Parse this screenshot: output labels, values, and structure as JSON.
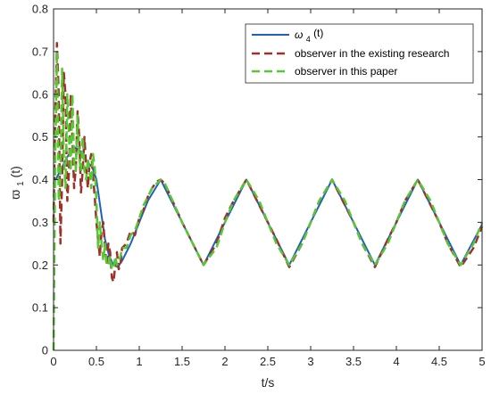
{
  "chart_data": {
    "type": "line",
    "title": "",
    "xlabel": "t/s",
    "ylabel_main": "ϖ",
    "ylabel_sub": "1",
    "ylabel_suffix": "(t)",
    "xlim": [
      0,
      5
    ],
    "ylim": [
      0,
      0.8
    ],
    "xticks": [
      0,
      0.5,
      1,
      1.5,
      2,
      2.5,
      3,
      3.5,
      4,
      4.5,
      5
    ],
    "yticks": [
      0,
      0.1,
      0.2,
      0.3,
      0.4,
      0.5,
      0.6,
      0.7,
      0.8
    ],
    "xtick_labels": [
      "0",
      "0.5",
      "1",
      "1.5",
      "2",
      "2.5",
      "3",
      "3.5",
      "4",
      "4.5",
      "5"
    ],
    "ytick_labels": [
      "0",
      "0.1",
      "0.2",
      "0.3",
      "0.4",
      "0.5",
      "0.6",
      "0.7",
      "0.8"
    ],
    "grid": false,
    "legend_position": "top-right",
    "series": [
      {
        "name_main": "ω",
        "name_sub": "4",
        "name_suffix": "(t)",
        "color": "#1f5fbf",
        "dash": "solid",
        "x": [
          0,
          0.05,
          0.1,
          0.15,
          0.2,
          0.25,
          0.3,
          0.35,
          0.4,
          0.45,
          0.5,
          0.55,
          0.6,
          0.65,
          0.7,
          0.75,
          0.8,
          0.9,
          1.0,
          1.1,
          1.25,
          1.5,
          1.75,
          2.0,
          2.25,
          2.5,
          2.75,
          3.0,
          3.25,
          3.5,
          3.75,
          4.0,
          4.25,
          4.5,
          4.75,
          5.0
        ],
        "y": [
          0.39,
          0.41,
          0.43,
          0.45,
          0.465,
          0.475,
          0.47,
          0.455,
          0.44,
          0.43,
          0.4,
          0.33,
          0.26,
          0.22,
          0.2,
          0.195,
          0.21,
          0.25,
          0.3,
          0.35,
          0.4,
          0.3,
          0.2,
          0.3,
          0.4,
          0.3,
          0.2,
          0.3,
          0.4,
          0.3,
          0.2,
          0.3,
          0.4,
          0.3,
          0.2,
          0.295
        ]
      },
      {
        "name": "observer in the existing research",
        "color": "#a0302a",
        "dash": "dashed",
        "x": [
          0,
          0.02,
          0.04,
          0.06,
          0.08,
          0.1,
          0.12,
          0.14,
          0.16,
          0.18,
          0.2,
          0.22,
          0.24,
          0.26,
          0.28,
          0.3,
          0.32,
          0.34,
          0.36,
          0.38,
          0.4,
          0.42,
          0.44,
          0.46,
          0.48,
          0.5,
          0.52,
          0.54,
          0.56,
          0.58,
          0.6,
          0.62,
          0.64,
          0.66,
          0.68,
          0.7,
          0.72,
          0.74,
          0.76,
          0.78,
          0.8,
          0.85,
          0.9,
          0.95,
          1.0,
          1.05,
          1.1,
          1.15,
          1.2,
          1.25,
          1.3,
          1.5,
          1.75,
          1.9,
          2.0,
          2.1,
          2.25,
          2.4,
          2.5,
          2.6,
          2.75,
          2.9,
          3.0,
          3.1,
          3.25,
          3.4,
          3.5,
          3.6,
          3.75,
          3.9,
          4.0,
          4.1,
          4.25,
          4.4,
          4.5,
          4.6,
          4.75,
          4.9,
          5.0
        ],
        "y": [
          0.3,
          0.55,
          0.72,
          0.6,
          0.25,
          0.4,
          0.65,
          0.6,
          0.35,
          0.42,
          0.6,
          0.5,
          0.38,
          0.43,
          0.56,
          0.5,
          0.37,
          0.42,
          0.5,
          0.43,
          0.38,
          0.44,
          0.46,
          0.41,
          0.36,
          0.3,
          0.26,
          0.22,
          0.28,
          0.3,
          0.24,
          0.2,
          0.25,
          0.23,
          0.17,
          0.16,
          0.2,
          0.23,
          0.19,
          0.2,
          0.24,
          0.25,
          0.28,
          0.27,
          0.31,
          0.33,
          0.36,
          0.38,
          0.395,
          0.4,
          0.39,
          0.3,
          0.2,
          0.25,
          0.31,
          0.35,
          0.4,
          0.34,
          0.3,
          0.26,
          0.195,
          0.25,
          0.3,
          0.35,
          0.4,
          0.34,
          0.3,
          0.25,
          0.195,
          0.26,
          0.3,
          0.35,
          0.4,
          0.34,
          0.3,
          0.25,
          0.195,
          0.24,
          0.29
        ]
      },
      {
        "name": "observer in this paper",
        "color": "#55c833",
        "dash": "dashed",
        "x": [
          0,
          0.02,
          0.04,
          0.06,
          0.08,
          0.1,
          0.12,
          0.14,
          0.16,
          0.18,
          0.2,
          0.22,
          0.24,
          0.26,
          0.28,
          0.3,
          0.32,
          0.34,
          0.36,
          0.38,
          0.4,
          0.42,
          0.44,
          0.46,
          0.48,
          0.5,
          0.52,
          0.54,
          0.56,
          0.58,
          0.6,
          0.62,
          0.64,
          0.66,
          0.68,
          0.7,
          0.72,
          0.74,
          0.76,
          0.78,
          0.8,
          0.85,
          0.9,
          0.95,
          1.0,
          1.05,
          1.1,
          1.15,
          1.2,
          1.25,
          1.3,
          1.5,
          1.75,
          1.9,
          2.0,
          2.1,
          2.25,
          2.4,
          2.5,
          2.6,
          2.75,
          2.9,
          3.0,
          3.1,
          3.25,
          3.4,
          3.5,
          3.6,
          3.75,
          3.9,
          4.0,
          4.1,
          4.25,
          4.4,
          4.5,
          4.6,
          4.75,
          4.9,
          5.0
        ],
        "y": [
          0.0,
          0.45,
          0.7,
          0.35,
          0.4,
          0.66,
          0.45,
          0.38,
          0.6,
          0.5,
          0.42,
          0.6,
          0.44,
          0.42,
          0.55,
          0.45,
          0.42,
          0.5,
          0.42,
          0.4,
          0.45,
          0.42,
          0.38,
          0.46,
          0.43,
          0.35,
          0.24,
          0.3,
          0.25,
          0.21,
          0.25,
          0.2,
          0.2,
          0.22,
          0.19,
          0.19,
          0.22,
          0.2,
          0.21,
          0.22,
          0.24,
          0.24,
          0.27,
          0.28,
          0.31,
          0.34,
          0.36,
          0.38,
          0.39,
          0.4,
          0.39,
          0.3,
          0.2,
          0.24,
          0.3,
          0.35,
          0.4,
          0.35,
          0.3,
          0.25,
          0.2,
          0.25,
          0.3,
          0.35,
          0.4,
          0.35,
          0.3,
          0.25,
          0.2,
          0.25,
          0.3,
          0.35,
          0.4,
          0.35,
          0.3,
          0.25,
          0.2,
          0.25,
          0.3
        ]
      }
    ]
  }
}
